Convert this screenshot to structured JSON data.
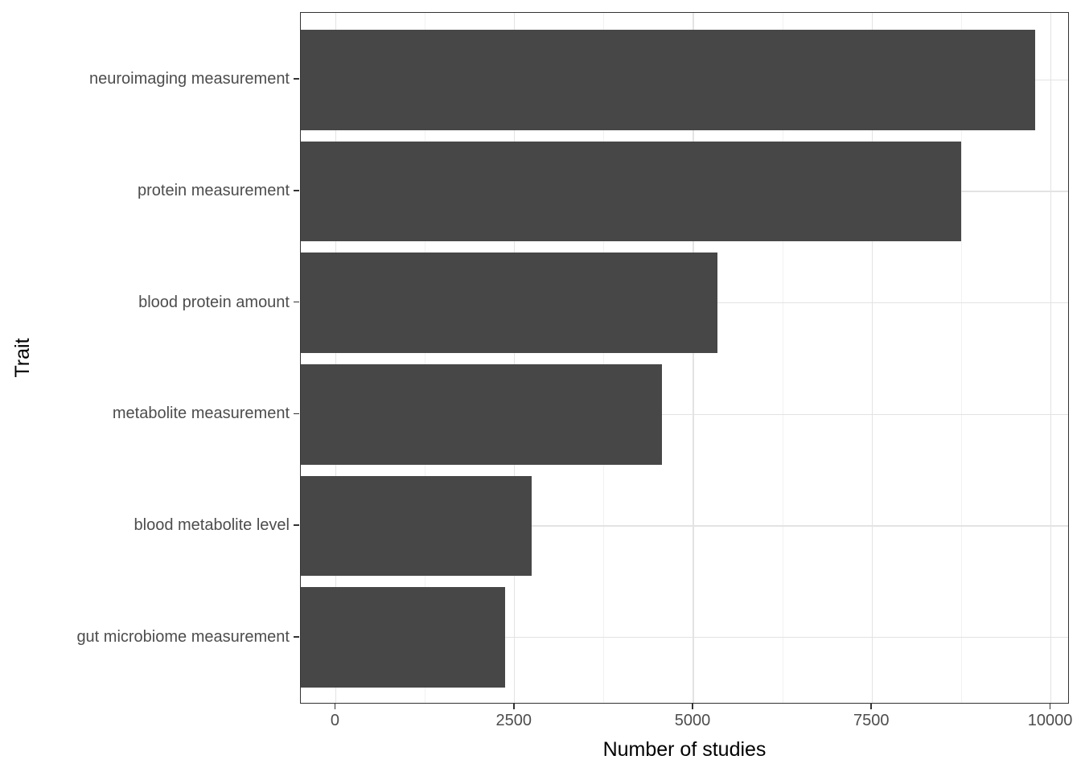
{
  "chart_data": {
    "type": "bar",
    "orientation": "horizontal",
    "title": "",
    "xlabel": "Number of studies",
    "ylabel": "Trait",
    "categories": [
      "neuroimaging measurement",
      "protein measurement",
      "blood protein amount",
      "metabolite measurement",
      "blood metabolite level",
      "gut microbiome measurement"
    ],
    "values": [
      9775,
      8750,
      5340,
      4560,
      2740,
      2370
    ],
    "xlim": [
      0,
      10000
    ],
    "xticks": [
      0,
      2500,
      5000,
      7500,
      10000
    ],
    "xtick_labels": [
      "0",
      "2500",
      "5000",
      "7500",
      "10000"
    ],
    "xminor_ticks": [
      1250,
      3750,
      6250,
      8750
    ],
    "x_expansion": 0.05,
    "grid": "major and minor vertical, major horizontal at category centers",
    "legend_position": "none",
    "style": "ggplot2 theme_bw single series"
  },
  "colors": {
    "bar_fill": "#474747",
    "panel_border": "#333333",
    "grid_major": "#e3e3e3",
    "grid_minor": "#f1f1f1",
    "axis_tick": "#333333",
    "tick_label": "#4d4d4d",
    "axis_title": "#000000",
    "background": "#ffffff"
  }
}
